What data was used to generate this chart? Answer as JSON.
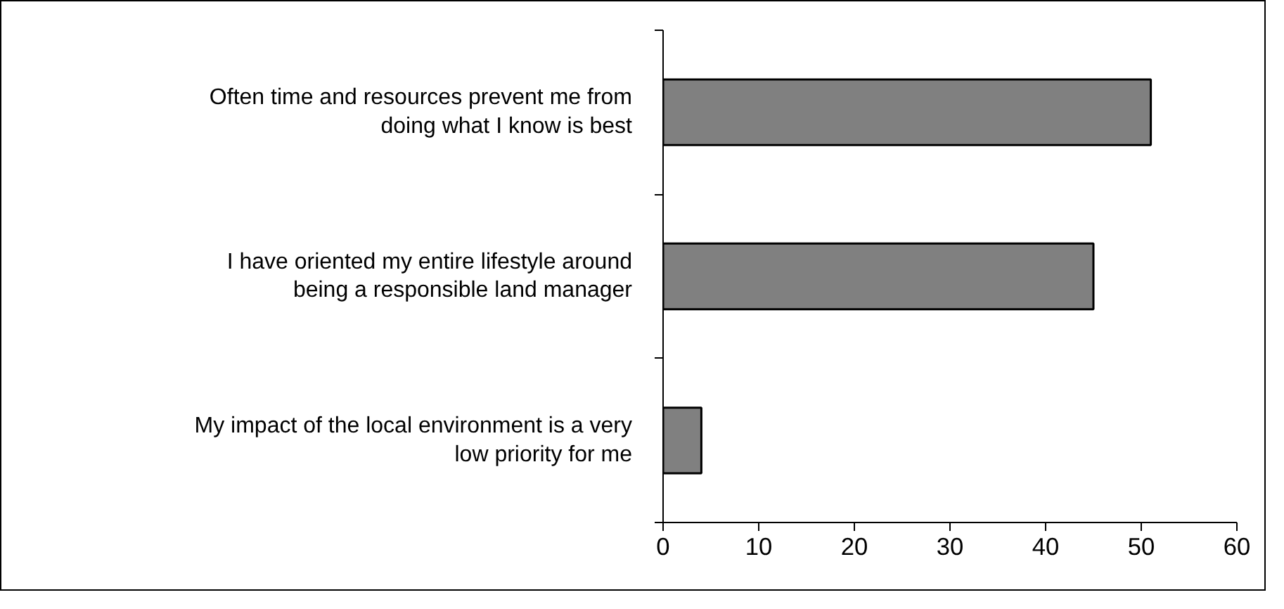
{
  "chart_data": {
    "type": "bar",
    "orientation": "horizontal",
    "categories": [
      "Often time and resources prevent me from doing what I know is best",
      "I have oriented my entire lifestyle around being a responsible land manager",
      "My impact of the local environment is a very low priority for me"
    ],
    "values": [
      51,
      45,
      4
    ],
    "color": "#808080",
    "xlim": [
      0,
      60
    ],
    "xticks": [
      0,
      10,
      20,
      30,
      40,
      50,
      60
    ],
    "grid": false
  }
}
